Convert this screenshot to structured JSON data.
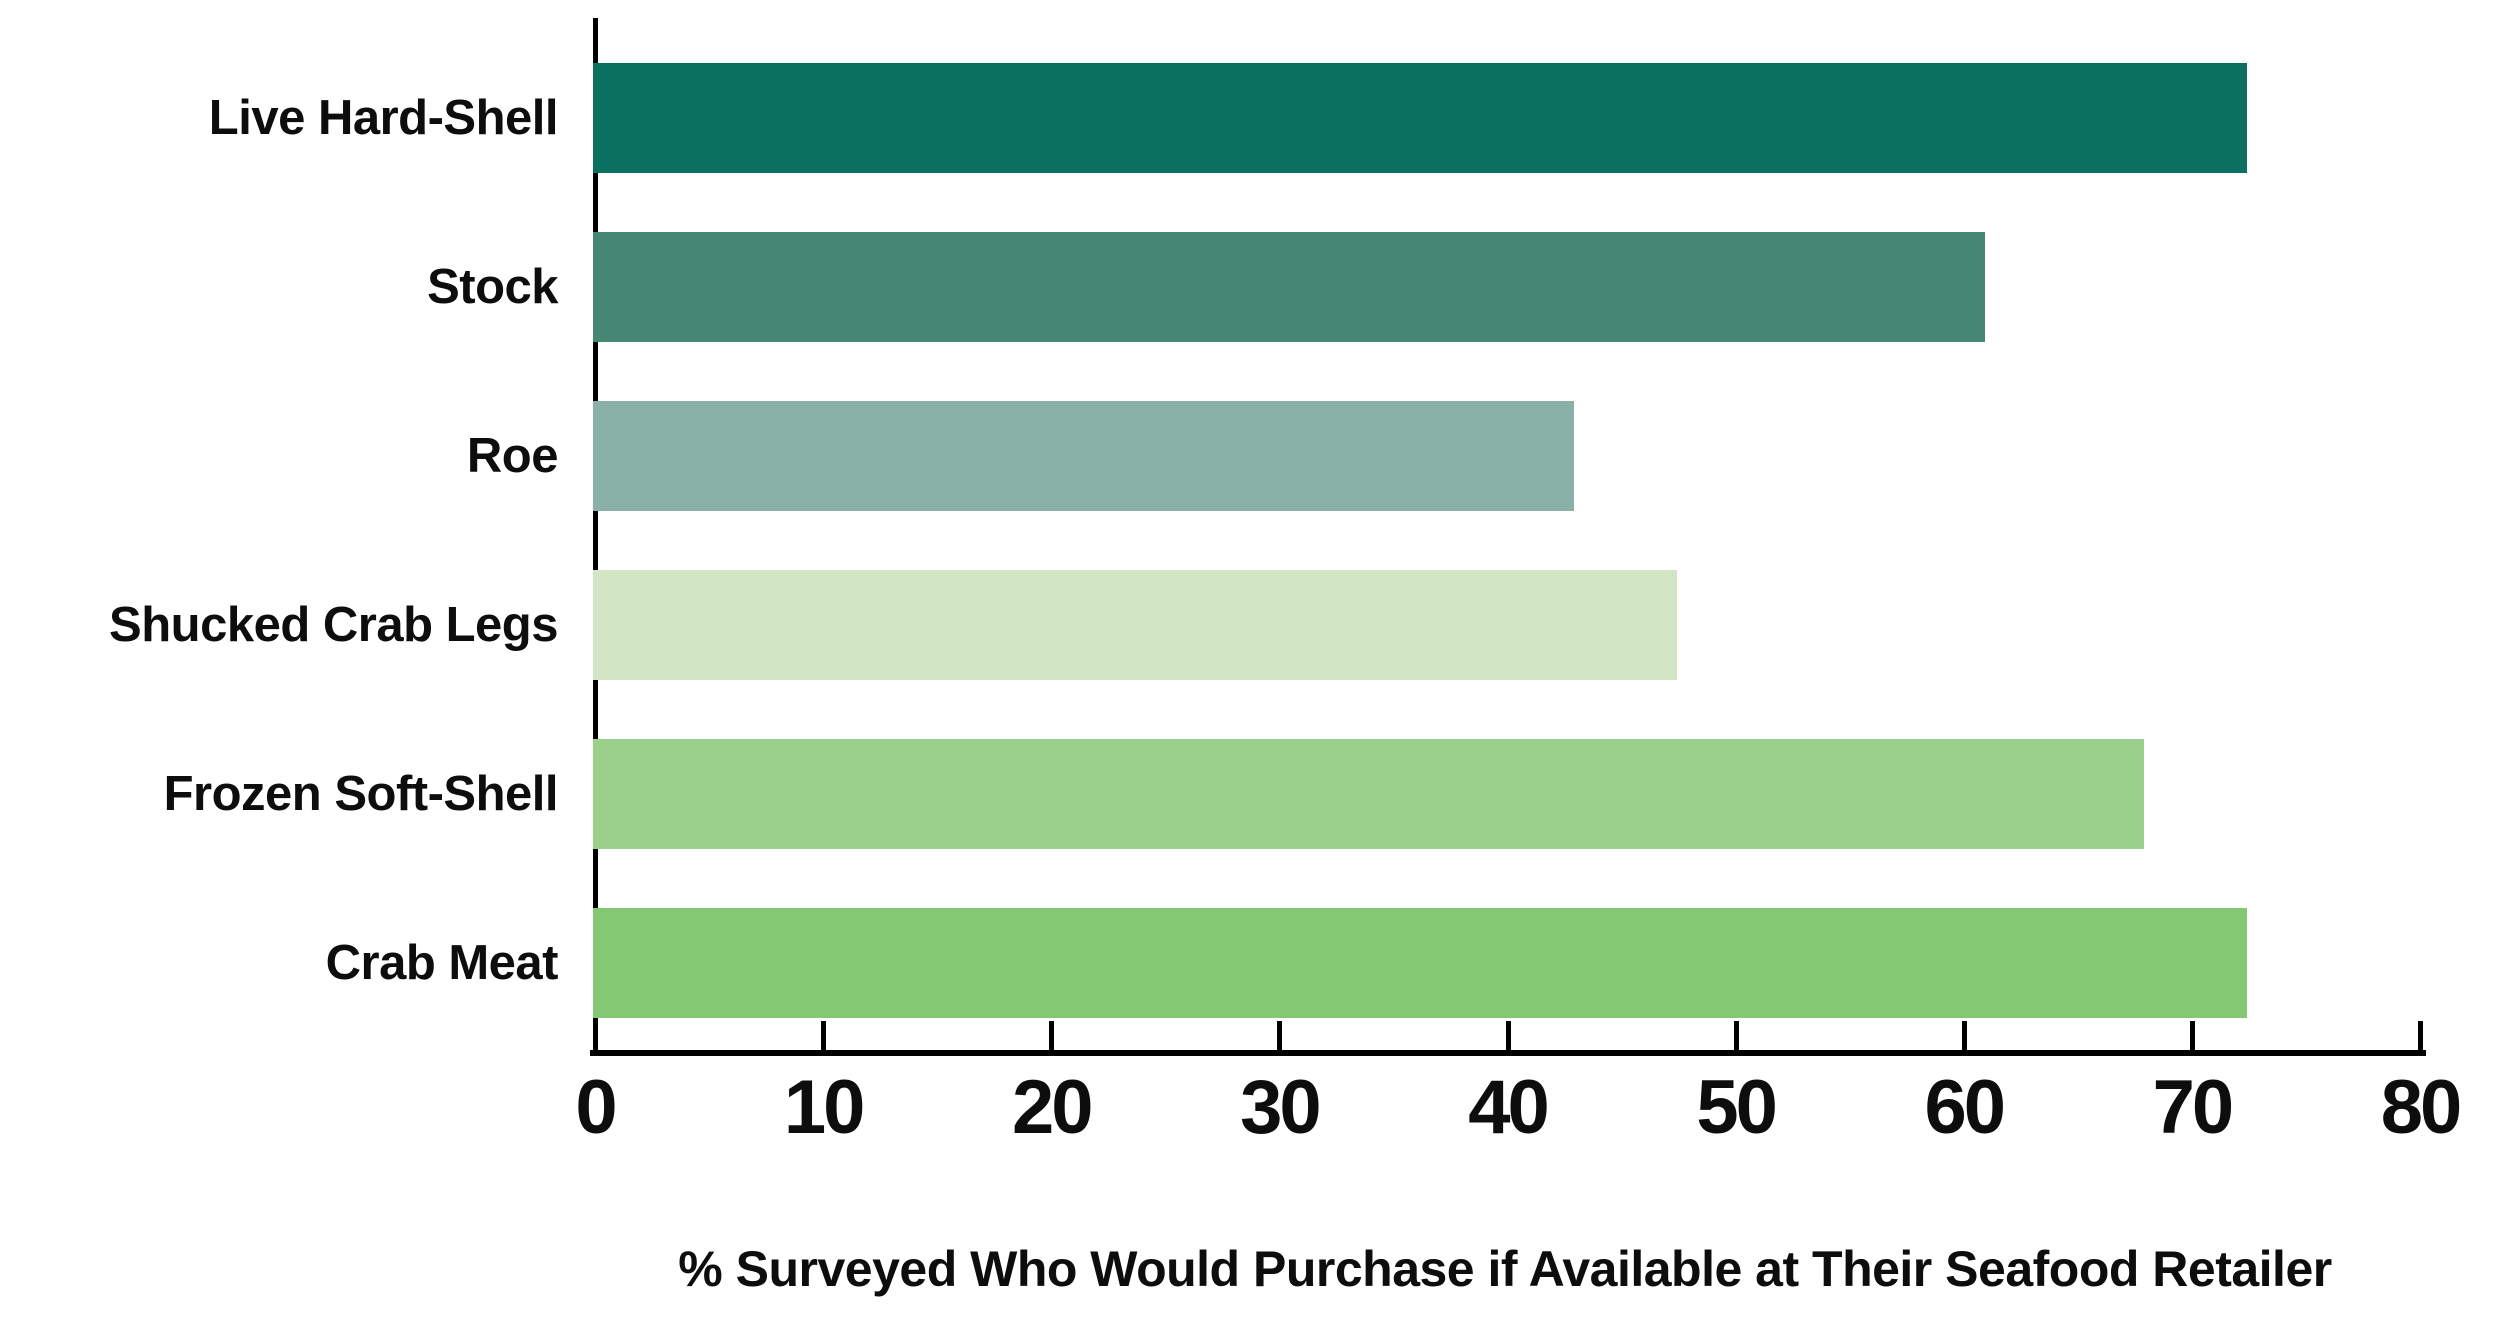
{
  "chart_data": {
    "type": "bar",
    "orientation": "horizontal",
    "title": "",
    "xlabel": "% Surveyed Who Would Purchase if Available at Their Seafood Retailer",
    "ylabel": "",
    "categories": [
      "Live Hard-Shell",
      "Stock",
      "Roe",
      "Shucked Crab Legs",
      "Frozen Soft-Shell",
      "Crab Meat"
    ],
    "values": [
      72.5,
      61,
      43,
      47.5,
      68,
      72.5
    ],
    "bar_colors": [
      "#0B7060",
      "#468773",
      "#8AB1A8",
      "#D2E6C6",
      "#9BCF8C",
      "#84C873"
    ],
    "xlim": [
      0,
      80
    ],
    "xticks": [
      0,
      10,
      20,
      30,
      40,
      50,
      60,
      70,
      80
    ],
    "grid": false,
    "legend": null,
    "axis_color": "#000000",
    "text_color": "#0d0d0d",
    "background_color": "#ffffff"
  }
}
